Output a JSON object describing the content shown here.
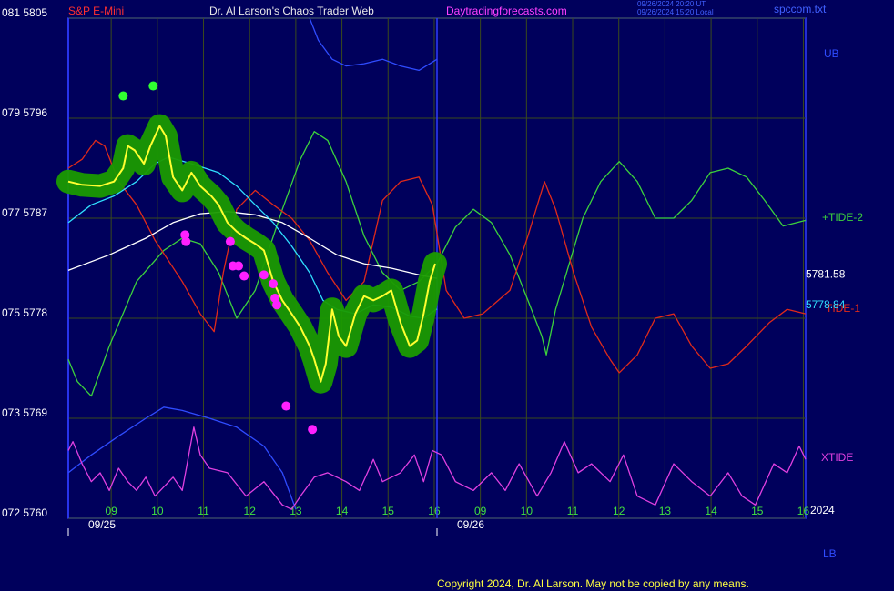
{
  "chart_data": {
    "type": "line",
    "instrument": "S&P E-Mini",
    "title": "Dr. Al Larson's Chaos Trader Web",
    "site": "Daytradingforecasts.com",
    "timestamps": [
      "09/26/2024 20:20 UT",
      "09/26/2024 15:20 Local"
    ],
    "file": "spccom.txt",
    "year": "2024",
    "copyright": "Copyright 2024, Dr. Al Larson. May not be copied by any means.",
    "xlim": [
      -0.93,
      15.05
    ],
    "ylim": [
      5760,
      5805
    ],
    "grid": true,
    "xticks": [
      {
        "value": 0,
        "label": "09"
      },
      {
        "value": 1,
        "label": "10"
      },
      {
        "value": 2,
        "label": "11"
      },
      {
        "value": 3,
        "label": "12"
      },
      {
        "value": 4,
        "label": "13"
      },
      {
        "value": 5,
        "label": "14"
      },
      {
        "value": 6,
        "label": "15"
      },
      {
        "value": 7,
        "label": "16"
      },
      {
        "value": 8,
        "label": "09"
      },
      {
        "value": 9,
        "label": "10"
      },
      {
        "value": 10,
        "label": "11"
      },
      {
        "value": 11,
        "label": "12"
      },
      {
        "value": 12,
        "label": "13"
      },
      {
        "value": 13,
        "label": "14"
      },
      {
        "value": 14,
        "label": "15"
      },
      {
        "value": 15,
        "label": "16"
      }
    ],
    "date_ticks": [
      {
        "value": -0.93,
        "label": "09/25"
      },
      {
        "value": 7.06,
        "label": "09/26"
      }
    ],
    "yticks": [
      {
        "value": 5805,
        "label": "081  5805"
      },
      {
        "value": 5796,
        "label": "079  5796"
      },
      {
        "value": 5787,
        "label": "077  5787"
      },
      {
        "value": 5778,
        "label": "075  5778"
      },
      {
        "value": 5769,
        "label": "073  5769"
      },
      {
        "value": 5760,
        "label": "072  5760"
      }
    ],
    "series": [
      {
        "name": "+TIDE-2",
        "color": "#3cd23c",
        "x": [
          -0.93,
          -0.73,
          -0.43,
          -0.04,
          0.55,
          1.14,
          1.54,
          1.93,
          2.33,
          2.72,
          3.12,
          3.71,
          4.1,
          4.4,
          4.69,
          5.09,
          5.48,
          5.88,
          6.27,
          6.67,
          7.06,
          7.46,
          7.85,
          8.24,
          8.64,
          9.03,
          9.33,
          9.43,
          9.63,
          10.22,
          10.61,
          11.01,
          11.4,
          11.79,
          12.19,
          12.58,
          12.98,
          13.37,
          13.77,
          14.16,
          14.56,
          15.05
        ],
        "values": [
          5774.3,
          5772.3,
          5771.0,
          5775.5,
          5781.3,
          5784.1,
          5785.2,
          5784.7,
          5782.1,
          5778.0,
          5780.5,
          5787.8,
          5792.3,
          5794.8,
          5794.0,
          5790.3,
          5785.4,
          5782.1,
          5780.5,
          5781.3,
          5782.9,
          5786.2,
          5787.8,
          5786.6,
          5783.7,
          5779.6,
          5776.4,
          5774.7,
          5778.8,
          5787.0,
          5790.3,
          5792.1,
          5790.3,
          5787.0,
          5787.0,
          5788.6,
          5791.1,
          5791.5,
          5790.7,
          5788.6,
          5786.3,
          5786.8
        ]
      },
      {
        "name": "TIDE-1",
        "color": "#e02a1a",
        "x": [
          -0.93,
          -0.63,
          -0.34,
          -0.14,
          0.16,
          0.55,
          0.95,
          1.54,
          1.93,
          2.23,
          2.43,
          2.72,
          3.12,
          3.51,
          3.91,
          4.3,
          4.69,
          5.09,
          5.48,
          5.88,
          6.27,
          6.67,
          6.96,
          7.26,
          7.65,
          8.05,
          8.64,
          9.03,
          9.39,
          9.63,
          10.02,
          10.41,
          10.81,
          11.01,
          11.4,
          11.79,
          12.19,
          12.58,
          12.98,
          13.37,
          13.77,
          14.26,
          14.65,
          15.05
        ],
        "values": [
          5791.5,
          5792.3,
          5794.0,
          5793.5,
          5790.3,
          5788.2,
          5785.0,
          5781.3,
          5778.4,
          5776.8,
          5782.1,
          5787.8,
          5789.5,
          5788.2,
          5787.0,
          5785.0,
          5782.1,
          5779.6,
          5781.3,
          5788.6,
          5790.3,
          5790.7,
          5788.2,
          5780.5,
          5778.0,
          5778.4,
          5780.5,
          5785.4,
          5790.3,
          5787.8,
          5782.1,
          5777.2,
          5774.3,
          5773.1,
          5774.7,
          5778.0,
          5778.4,
          5775.5,
          5773.5,
          5773.9,
          5775.5,
          5777.6,
          5778.8,
          5778.4
        ]
      },
      {
        "name": "UB",
        "color": "#2f4cff",
        "x": [
          4.3,
          4.49,
          4.79,
          5.09,
          5.48,
          5.88,
          6.27,
          6.67,
          7.06
        ],
        "values": [
          5805.0,
          5803.0,
          5801.3,
          5800.7,
          5800.9,
          5801.3,
          5800.7,
          5800.3,
          5801.3
        ]
      },
      {
        "name": "LB",
        "color": "#2f4cff",
        "x": [
          -0.93,
          -0.43,
          0.16,
          0.75,
          1.14,
          1.54,
          2.13,
          2.72,
          3.31,
          3.71,
          4.0
        ],
        "values": [
          5764.1,
          5765.7,
          5767.4,
          5769.0,
          5770.0,
          5769.7,
          5769.0,
          5768.2,
          5766.5,
          5764.1,
          5760.8
        ]
      },
      {
        "name": "XTIDE",
        "color": "#e040e0",
        "x": [
          -0.93,
          -0.83,
          -0.63,
          -0.43,
          -0.24,
          -0.04,
          0.16,
          0.36,
          0.55,
          0.75,
          0.95,
          1.34,
          1.54,
          1.79,
          1.93,
          2.13,
          2.52,
          2.92,
          3.31,
          3.71,
          3.91,
          4.1,
          4.4,
          4.69,
          5.09,
          5.38,
          5.68,
          5.88,
          6.27,
          6.57,
          6.77,
          6.96,
          7.16,
          7.46,
          7.85,
          8.24,
          8.54,
          8.84,
          9.23,
          9.53,
          9.82,
          10.12,
          10.41,
          10.81,
          11.1,
          11.4,
          11.79,
          12.19,
          12.58,
          12.98,
          13.37,
          13.67,
          13.96,
          14.36,
          14.65,
          14.91,
          15.05
        ],
        "values": [
          5766.1,
          5766.9,
          5764.9,
          5763.3,
          5764.1,
          5762.5,
          5764.5,
          5763.3,
          5762.5,
          5763.7,
          5762.0,
          5763.7,
          5762.5,
          5768.2,
          5765.7,
          5764.5,
          5764.1,
          5762.0,
          5763.3,
          5761.2,
          5760.8,
          5762.0,
          5763.7,
          5764.1,
          5763.3,
          5762.5,
          5765.3,
          5763.3,
          5764.1,
          5765.7,
          5763.3,
          5766.1,
          5765.7,
          5763.3,
          5762.5,
          5764.1,
          5762.5,
          5764.9,
          5762.0,
          5764.1,
          5766.9,
          5764.1,
          5764.9,
          5763.3,
          5765.7,
          5762.0,
          5761.2,
          5764.9,
          5763.3,
          5762.0,
          5764.1,
          5762.0,
          5761.2,
          5764.9,
          5764.1,
          5766.5,
          5765.3
        ]
      },
      {
        "color": "#ffffff",
        "show_last": true,
        "x": [
          -0.93,
          -0.04,
          0.75,
          1.34,
          1.93,
          2.52,
          3.12,
          3.71,
          4.3,
          4.89,
          5.48,
          6.07,
          6.67,
          7.06
        ],
        "values": [
          5782.3,
          5783.7,
          5785.2,
          5786.6,
          5787.4,
          5787.6,
          5787.3,
          5786.6,
          5785.2,
          5783.7,
          5782.9,
          5782.5,
          5781.9,
          5781.58
        ]
      },
      {
        "color": "#30e0ff",
        "show_last": true,
        "x": [
          -0.93,
          -0.43,
          0.06,
          0.55,
          0.95,
          1.24,
          1.74,
          2.33,
          2.72,
          3.12,
          3.51,
          3.91,
          4.3,
          4.59,
          4.89,
          5.29,
          5.68,
          6.07,
          6.47,
          6.77,
          7.06
        ],
        "values": [
          5786.6,
          5788.2,
          5789.0,
          5790.3,
          5791.9,
          5792.5,
          5791.9,
          5791.1,
          5789.9,
          5788.2,
          5786.6,
          5784.5,
          5782.1,
          5779.6,
          5778.8,
          5778.4,
          5779.2,
          5779.0,
          5778.2,
          5778.0,
          5778.84
        ]
      },
      {
        "color": "#ffff30",
        "halo": "#1a9a00",
        "x": [
          -0.93,
          -0.63,
          -0.24,
          0.06,
          0.26,
          0.36,
          0.51,
          0.71,
          0.85,
          1.05,
          1.18,
          1.34,
          1.54,
          1.74,
          1.93,
          2.17,
          2.33,
          2.52,
          2.72,
          2.92,
          3.12,
          3.31,
          3.51,
          3.71,
          3.91,
          4.1,
          4.3,
          4.4,
          4.54,
          4.65,
          4.79,
          4.93,
          5.09,
          5.29,
          5.48,
          5.68,
          5.88,
          6.07,
          6.27,
          6.47,
          6.63,
          6.77,
          6.9,
          7.02
        ],
        "values": [
          5790.3,
          5790.0,
          5789.9,
          5790.3,
          5791.5,
          5793.5,
          5793.1,
          5791.9,
          5793.5,
          5795.3,
          5794.4,
          5790.7,
          5789.5,
          5791.1,
          5789.9,
          5789.0,
          5788.2,
          5786.6,
          5785.8,
          5785.2,
          5784.7,
          5784.1,
          5781.3,
          5779.6,
          5778.4,
          5777.2,
          5775.5,
          5774.3,
          5772.3,
          5773.9,
          5778.8,
          5776.4,
          5775.5,
          5778.4,
          5780.0,
          5779.6,
          5780.0,
          5780.5,
          5777.6,
          5775.5,
          5776.0,
          5778.4,
          5781.3,
          5782.9
        ]
      },
      {
        "color": "#ff20ff",
        "marker": "dot",
        "x": [
          1.6,
          1.62,
          2.58,
          2.64,
          2.76,
          2.88,
          3.31,
          3.51,
          3.55,
          3.59,
          3.79,
          4.36
        ],
        "values": [
          5785.5,
          5784.9,
          5784.9,
          5782.7,
          5782.7,
          5781.8,
          5781.9,
          5781.1,
          5779.8,
          5779.2,
          5770.1,
          5768.0
        ]
      },
      {
        "color": "#30ff30",
        "marker": "dot",
        "x": [
          0.26,
          0.91
        ],
        "values": [
          5798.0,
          5798.9
        ]
      }
    ]
  }
}
